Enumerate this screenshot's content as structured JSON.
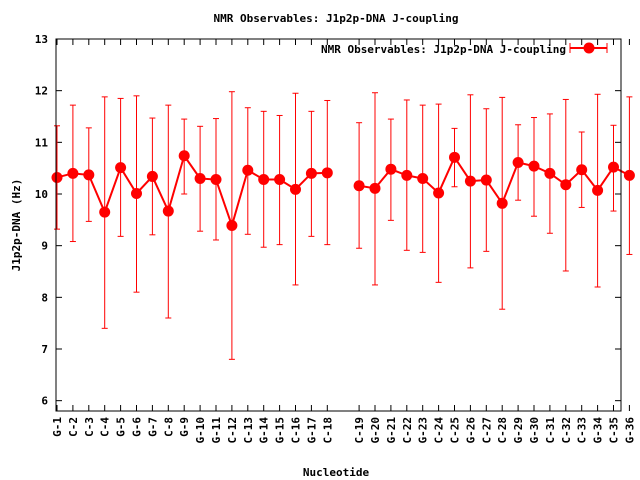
{
  "chart_data": {
    "type": "line",
    "title": "NMR Observables: J1p2p-DNA J-coupling",
    "xlabel": "Nucleotide",
    "ylabel": "J1p2p-DNA (Hz)",
    "ylim": [
      5.8,
      13
    ],
    "yticks": [
      6,
      7,
      8,
      9,
      10,
      11,
      12,
      13
    ],
    "grid": false,
    "legend_position": "top-right",
    "series": [
      {
        "name": "NMR Observables: J1p2p-DNA J-coupling",
        "color": "#ff0000",
        "points": [
          {
            "x": "G-1",
            "y": 10.32,
            "ylow": 9.32,
            "yhigh": 11.32
          },
          {
            "x": "C-2",
            "y": 10.4,
            "ylow": 9.08,
            "yhigh": 11.72
          },
          {
            "x": "C-3",
            "y": 10.37,
            "ylow": 9.47,
            "yhigh": 11.28
          },
          {
            "x": "C-4",
            "y": 9.65,
            "ylow": 7.4,
            "yhigh": 11.88
          },
          {
            "x": "G-5",
            "y": 10.51,
            "ylow": 9.18,
            "yhigh": 11.85
          },
          {
            "x": "G-6",
            "y": 10.01,
            "ylow": 8.1,
            "yhigh": 11.9
          },
          {
            "x": "G-7",
            "y": 10.34,
            "ylow": 9.21,
            "yhigh": 11.47
          },
          {
            "x": "C-8",
            "y": 9.67,
            "ylow": 7.6,
            "yhigh": 11.72
          },
          {
            "x": "G-9",
            "y": 10.74,
            "ylow": 10.0,
            "yhigh": 11.45
          },
          {
            "x": "G-10",
            "y": 10.3,
            "ylow": 9.28,
            "yhigh": 11.31
          },
          {
            "x": "G-11",
            "y": 10.28,
            "ylow": 9.11,
            "yhigh": 11.46
          },
          {
            "x": "C-12",
            "y": 9.39,
            "ylow": 6.8,
            "yhigh": 11.98
          },
          {
            "x": "C-13",
            "y": 10.46,
            "ylow": 9.22,
            "yhigh": 11.67
          },
          {
            "x": "G-14",
            "y": 10.28,
            "ylow": 8.97,
            "yhigh": 11.6
          },
          {
            "x": "G-15",
            "y": 10.28,
            "ylow": 9.02,
            "yhigh": 11.52
          },
          {
            "x": "C-16",
            "y": 10.09,
            "ylow": 8.24,
            "yhigh": 11.95
          },
          {
            "x": "G-17",
            "y": 10.4,
            "ylow": 9.18,
            "yhigh": 11.6
          },
          {
            "x": "C-18",
            "y": 10.41,
            "ylow": 9.02,
            "yhigh": 11.81
          },
          {
            "x": "C-19",
            "y": 10.16,
            "ylow": 8.95,
            "yhigh": 11.38
          },
          {
            "x": "G-20",
            "y": 10.11,
            "ylow": 8.24,
            "yhigh": 11.96
          },
          {
            "x": "G-21",
            "y": 10.48,
            "ylow": 9.49,
            "yhigh": 11.45
          },
          {
            "x": "C-22",
            "y": 10.36,
            "ylow": 8.91,
            "yhigh": 11.82
          },
          {
            "x": "G-23",
            "y": 10.3,
            "ylow": 8.87,
            "yhigh": 11.72
          },
          {
            "x": "C-24",
            "y": 10.02,
            "ylow": 8.29,
            "yhigh": 11.74
          },
          {
            "x": "C-25",
            "y": 10.71,
            "ylow": 10.14,
            "yhigh": 11.27
          },
          {
            "x": "G-26",
            "y": 10.25,
            "ylow": 8.57,
            "yhigh": 11.92
          },
          {
            "x": "C-27",
            "y": 10.27,
            "ylow": 8.89,
            "yhigh": 11.65
          },
          {
            "x": "C-28",
            "y": 9.82,
            "ylow": 7.77,
            "yhigh": 11.87
          },
          {
            "x": "G-29",
            "y": 10.61,
            "ylow": 9.88,
            "yhigh": 11.34
          },
          {
            "x": "G-30",
            "y": 10.54,
            "ylow": 9.57,
            "yhigh": 11.48
          },
          {
            "x": "C-31",
            "y": 10.4,
            "ylow": 9.24,
            "yhigh": 11.55
          },
          {
            "x": "C-32",
            "y": 10.18,
            "ylow": 8.51,
            "yhigh": 11.83
          },
          {
            "x": "C-33",
            "y": 10.47,
            "ylow": 9.74,
            "yhigh": 11.2
          },
          {
            "x": "G-34",
            "y": 10.07,
            "ylow": 8.2,
            "yhigh": 11.93
          },
          {
            "x": "C-35",
            "y": 10.52,
            "ylow": 9.67,
            "yhigh": 11.33
          },
          {
            "x": "G-36",
            "y": 10.36,
            "ylow": 8.83,
            "yhigh": 11.88
          }
        ]
      }
    ]
  }
}
